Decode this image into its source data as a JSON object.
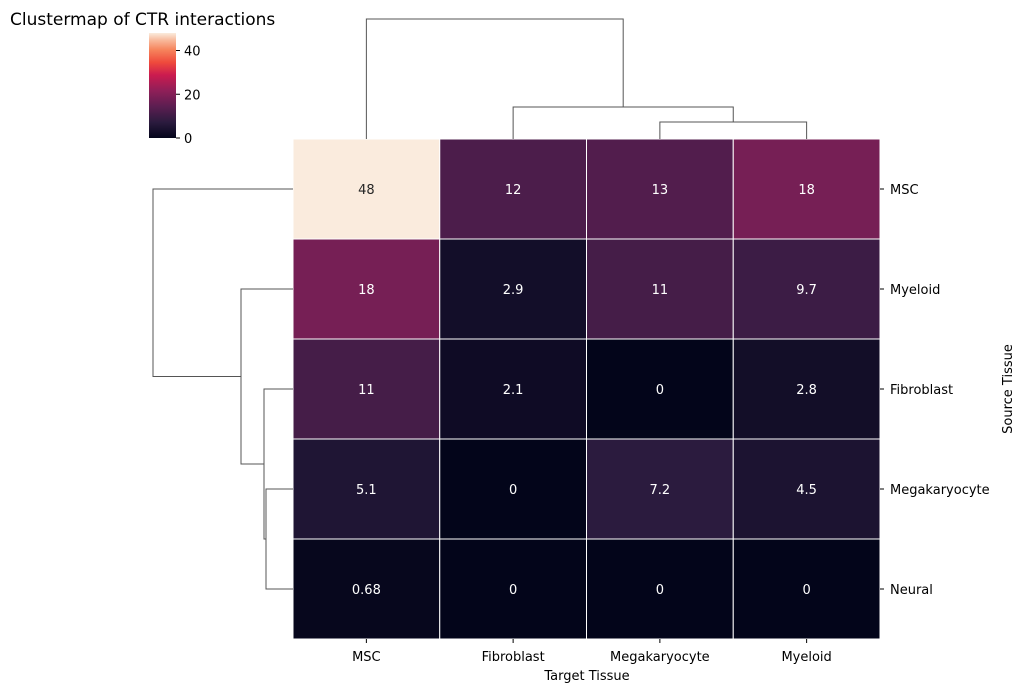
{
  "chart_data": {
    "type": "heatmap",
    "title": "Clustermap of CTR interactions",
    "xlabel": "Target Tissue",
    "ylabel": "Source Tissue",
    "columns": [
      "MSC",
      "Fibroblast",
      "Megakaryocyte",
      "Myeloid"
    ],
    "rows": [
      "MSC",
      "Myeloid",
      "Fibroblast",
      "Megakaryocyte",
      "Neural"
    ],
    "values": [
      [
        48,
        12,
        13,
        18
      ],
      [
        18,
        2.9,
        11,
        9.7
      ],
      [
        11,
        2.1,
        0,
        2.8
      ],
      [
        5.1,
        0,
        7.2,
        4.5
      ],
      [
        0.68,
        0,
        0,
        0
      ]
    ],
    "annotations": [
      [
        "48",
        "12",
        "13",
        "18"
      ],
      [
        "18",
        "2.9",
        "11",
        "9.7"
      ],
      [
        "11",
        "2.1",
        "0",
        "2.8"
      ],
      [
        "5.1",
        "0",
        "7.2",
        "4.5"
      ],
      [
        "0.68",
        "0",
        "0",
        "0"
      ]
    ],
    "colorbar": {
      "colormap": "rocket",
      "range": [
        0,
        48
      ],
      "ticks": [
        0,
        20,
        40
      ],
      "tick_labels": [
        "0",
        "20",
        "40"
      ],
      "placement": "top-left"
    },
    "dendrograms": {
      "column": "top",
      "row": "left",
      "column_merges": [
        [
          "Megakaryocyte",
          "Myeloid"
        ],
        [
          "Fibroblast",
          "Megakaryocyte+Myeloid"
        ],
        [
          "MSC",
          "Fibroblast+Megakaryocyte+Myeloid"
        ]
      ],
      "row_merges": [
        [
          "Megakaryocyte",
          "Neural"
        ],
        [
          "Fibroblast",
          "Megakaryocyte+Neural"
        ],
        [
          "Myeloid",
          "Fibroblast+Megakaryocyte+Neural"
        ],
        [
          "MSC",
          "Myeloid+Fibroblast+Megakaryocyte+Neural"
        ]
      ]
    }
  }
}
